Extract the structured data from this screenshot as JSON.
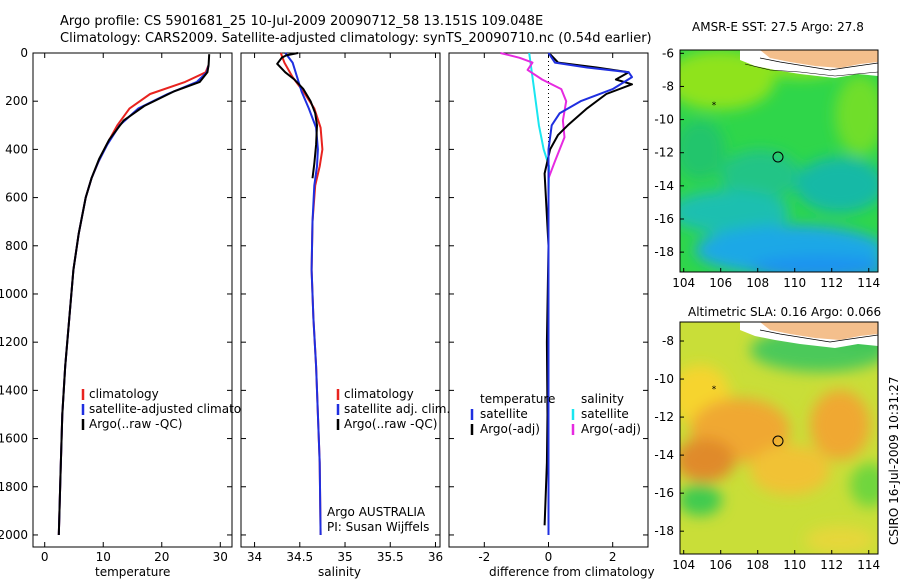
{
  "title_line1": "Argo profile: CS 5901681_25 10-Jul-2009 20090712_58 13.151S 109.048E",
  "title_line2": "Climatology: CARS2009. Satellite-adjusted climatology: synTS_20090710.nc (0.54d earlier)",
  "side_stamp": "CSIRO 16-Jul-2009 10:31:27",
  "colors": {
    "climatology": "#e8231f",
    "satellite": "#1f2fe0",
    "argo": "#000000",
    "satellite_diff": "#19e6f0",
    "argo_adj_salinity": "#e62ae0"
  },
  "chart_data": [
    {
      "id": "temperature",
      "type": "line",
      "xlabel": "temperature",
      "ylabel": "",
      "xlim": [
        -2,
        32
      ],
      "ylim": [
        2050,
        0
      ],
      "xticks": [
        0,
        10,
        20,
        30
      ],
      "yticks": [
        0,
        200,
        400,
        600,
        800,
        1000,
        1200,
        1400,
        1600,
        1800,
        2000
      ],
      "legend": [
        "climatology",
        "satellite-adjusted climatology",
        "Argo(..raw -QC)"
      ],
      "series": [
        {
          "name": "climatology",
          "color_key": "climatology",
          "x": [
            28.0,
            27.5,
            24.0,
            18.0,
            14.5,
            12.4,
            10.6,
            9.2,
            8.0,
            7.0,
            5.8,
            4.9,
            4.2,
            3.5,
            3.0,
            2.7,
            2.4
          ],
          "y": [
            50,
            80,
            120,
            170,
            230,
            300,
            380,
            450,
            520,
            600,
            750,
            900,
            1100,
            1300,
            1500,
            1750,
            2000
          ]
        },
        {
          "name": "satellite-adjusted climatology",
          "color_key": "satellite",
          "x": [
            28.0,
            27.7,
            26.0,
            21.0,
            16.0,
            12.8,
            10.7,
            9.2,
            8.0,
            7.0,
            5.8,
            4.9,
            4.2,
            3.5,
            3.0,
            2.7,
            2.4
          ],
          "y": [
            50,
            80,
            120,
            170,
            230,
            300,
            380,
            450,
            520,
            600,
            750,
            900,
            1100,
            1300,
            1500,
            1750,
            2000
          ]
        },
        {
          "name": "Argo(..raw -QC)",
          "color_key": "argo",
          "x": [
            28.1,
            28.0,
            27.8,
            26.5,
            22.0,
            17.0,
            13.5,
            11.0,
            9.3,
            8.0,
            7.0,
            5.8,
            4.9,
            4.2,
            3.5,
            3.0,
            2.7,
            2.4
          ],
          "y": [
            5,
            50,
            80,
            120,
            160,
            220,
            280,
            360,
            440,
            520,
            600,
            750,
            900,
            1100,
            1300,
            1500,
            1750,
            2000
          ]
        }
      ]
    },
    {
      "id": "salinity",
      "type": "line",
      "xlabel": "salinity",
      "ylabel": "",
      "xlim": [
        33.85,
        36.05
      ],
      "ylim": [
        2050,
        0
      ],
      "xticks": [
        34,
        34.5,
        35,
        35.5,
        36
      ],
      "legend": [
        "climatology",
        "satellite adj. clim.",
        "Argo(..raw -QC)"
      ],
      "annotation": [
        "Argo AUSTRALIA",
        "PI: Susan Wijffels"
      ],
      "series": [
        {
          "name": "climatology",
          "color_key": "climatology",
          "x": [
            34.29,
            34.33,
            34.42,
            34.54,
            34.66,
            34.73,
            34.75,
            34.72,
            34.67,
            34.64,
            34.63,
            34.65,
            34.68,
            34.7,
            34.72,
            34.73
          ],
          "y": [
            0,
            40,
            100,
            160,
            230,
            310,
            400,
            470,
            550,
            700,
            900,
            1100,
            1300,
            1500,
            1700,
            2000
          ]
        },
        {
          "name": "satellite adj. clim.",
          "color_key": "satellite",
          "x": [
            34.34,
            34.42,
            34.47,
            34.52,
            34.6,
            34.68,
            34.7,
            34.69,
            34.66,
            34.64,
            34.63,
            34.65,
            34.68,
            34.7,
            34.72,
            34.73
          ],
          "y": [
            0,
            40,
            100,
            160,
            230,
            310,
            400,
            470,
            550,
            700,
            900,
            1100,
            1300,
            1500,
            1700,
            2000
          ]
        },
        {
          "name": "Argo(..raw -QC)",
          "color_key": "argo",
          "x": [
            34.48,
            34.35,
            34.3,
            34.25,
            34.34,
            34.44,
            34.54,
            34.62,
            34.67,
            34.69,
            34.68,
            34.66,
            34.64
          ],
          "y": [
            0,
            10,
            20,
            45,
            80,
            110,
            150,
            200,
            250,
            300,
            380,
            460,
            520
          ]
        }
      ]
    },
    {
      "id": "difference",
      "type": "line",
      "xlabel": "difference from climatology",
      "ylabel": "",
      "xlim": [
        -3.1,
        3.1
      ],
      "ylim": [
        2050,
        0
      ],
      "xticks": [
        -2,
        0,
        2
      ],
      "legend_groups": [
        {
          "heading": "temperature",
          "items": [
            "satellite",
            "Argo(-adj)"
          ]
        },
        {
          "heading": "salinity",
          "items": [
            "satellite",
            "Argo(-adj)"
          ]
        }
      ],
      "series": [
        {
          "name": "temperature satellite",
          "color_key": "satellite",
          "x": [
            0.0,
            0.2,
            1.2,
            2.5,
            2.6,
            2.0,
            1.0,
            0.35,
            0.1,
            0.0,
            0.0,
            0.0,
            0.0
          ],
          "y": [
            0,
            40,
            60,
            80,
            100,
            150,
            200,
            250,
            300,
            400,
            600,
            1000,
            2000
          ]
        },
        {
          "name": "temperature Argo(-adj)",
          "color_key": "argo",
          "x": [
            0.05,
            0.3,
            1.5,
            2.5,
            2.1,
            2.6,
            1.8,
            1.2,
            0.6,
            0.3,
            0.05,
            -0.12,
            0.0,
            -0.05,
            -0.03,
            -0.05,
            -0.12
          ],
          "y": [
            5,
            40,
            60,
            80,
            110,
            130,
            170,
            230,
            300,
            340,
            400,
            500,
            800,
            1200,
            1500,
            1700,
            1960
          ]
        },
        {
          "name": "salinity satellite",
          "color_key": "satellite_diff",
          "x": [
            -0.6,
            -0.45,
            -0.3,
            -0.15,
            0.02,
            0.0,
            0.0,
            0.0
          ],
          "y": [
            0,
            150,
            300,
            400,
            470,
            600,
            1000,
            2000
          ]
        },
        {
          "name": "salinity Argo(-adj)",
          "color_key": "argo_adj_salinity",
          "x": [
            -1.5,
            -0.9,
            -0.5,
            -0.65,
            -0.2,
            0.4,
            0.55,
            0.45,
            0.5,
            0.2,
            0.0
          ],
          "y": [
            0,
            20,
            40,
            70,
            110,
            150,
            200,
            280,
            350,
            450,
            520
          ]
        }
      ]
    },
    {
      "id": "sst_map",
      "type": "heatmap",
      "title": "AMSR-E SST: 27.5 Argo: 27.8",
      "xlim": [
        103.8,
        114.5
      ],
      "ylim": [
        -19.2,
        -5.8
      ],
      "xticks": [
        104,
        106,
        108,
        110,
        112,
        114
      ],
      "yticks": [
        -6,
        -8,
        -10,
        -12,
        -14,
        -16,
        -18
      ],
      "profile_location": {
        "lon": 109.048,
        "lat": -13.151
      },
      "previous_location": {
        "lon": 105.6,
        "lat": -10.5
      }
    },
    {
      "id": "sla_map",
      "type": "heatmap",
      "title": "Altimetric SLA: 0.16 Argo: 0.066",
      "xlim": [
        103.8,
        114.5
      ],
      "ylim": [
        -19.2,
        -7.0
      ],
      "xticks": [
        104,
        106,
        108,
        110,
        112,
        114
      ],
      "yticks": [
        -8,
        -10,
        -12,
        -14,
        -16,
        -18
      ],
      "profile_location": {
        "lon": 109.048,
        "lat": -13.151
      },
      "previous_location": {
        "lon": 105.6,
        "lat": -10.5
      }
    }
  ]
}
